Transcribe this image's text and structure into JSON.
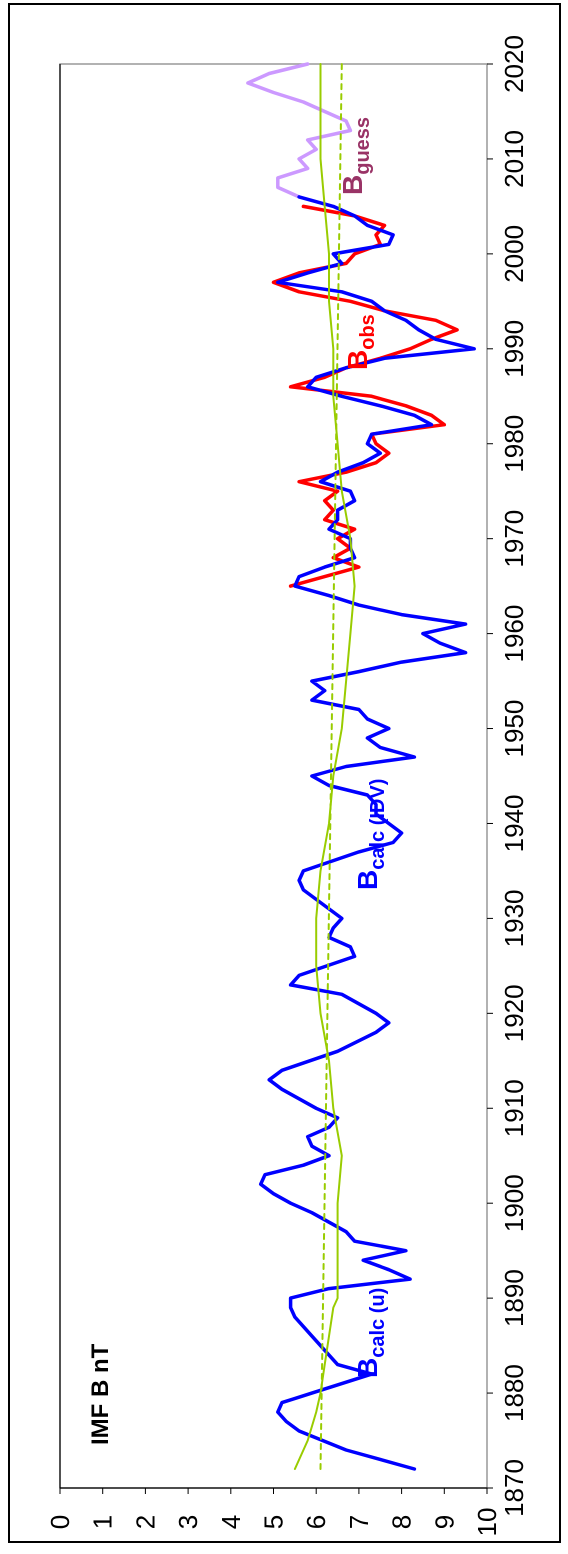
{
  "chart_data": {
    "type": "line",
    "orientation": "rotated-90-ccw",
    "title": "IMF B nT",
    "xlim": [
      1870,
      2020
    ],
    "ylim": [
      0,
      10
    ],
    "x_ticks": [
      "1870",
      "1880",
      "1890",
      "1900",
      "1910",
      "1920",
      "1930",
      "1940",
      "1950",
      "1960",
      "1970",
      "1980",
      "1990",
      "2000",
      "2010",
      "2020"
    ],
    "y_ticks": [
      "0",
      "1",
      "2",
      "3",
      "4",
      "5",
      "6",
      "7",
      "8",
      "9",
      "10"
    ],
    "grid": false,
    "colors": {
      "calc": "#0000ff",
      "obs": "#ff0000",
      "guess": "#cc99ff",
      "guess_label": "#993366",
      "smooth": "#99cc00"
    },
    "labels": {
      "calc_u": {
        "main": "B",
        "sub": "calc (u)"
      },
      "calc_idv": {
        "main": "B",
        "sub": "calc (IDV)"
      },
      "obs": {
        "main": "B",
        "sub": "obs"
      },
      "guess": {
        "main": "B",
        "sub": "guess"
      }
    },
    "series": [
      {
        "id": "calc",
        "points": [
          [
            1872,
            8.3
          ],
          [
            1874,
            6.7
          ],
          [
            1876,
            5.6
          ],
          [
            1877,
            5.3
          ],
          [
            1878,
            5.1
          ],
          [
            1879,
            5.2
          ],
          [
            1880,
            5.9
          ],
          [
            1882,
            7.3
          ],
          [
            1883,
            6.5
          ],
          [
            1884,
            6.3
          ],
          [
            1886,
            5.9
          ],
          [
            1888,
            5.5
          ],
          [
            1889,
            5.4
          ],
          [
            1890,
            5.4
          ],
          [
            1891,
            6.3
          ],
          [
            1892,
            8.2
          ],
          [
            1893,
            7.7
          ],
          [
            1894,
            7.1
          ],
          [
            1895,
            8.1
          ],
          [
            1896,
            6.9
          ],
          [
            1897,
            6.7
          ],
          [
            1898,
            6.3
          ],
          [
            1899,
            5.9
          ],
          [
            1900,
            5.4
          ],
          [
            1901,
            5.0
          ],
          [
            1902,
            4.7
          ],
          [
            1903,
            4.8
          ],
          [
            1904,
            5.7
          ],
          [
            1905,
            6.3
          ],
          [
            1906,
            5.9
          ],
          [
            1907,
            5.8
          ],
          [
            1908,
            6.3
          ],
          [
            1909,
            6.5
          ],
          [
            1910,
            6.0
          ],
          [
            1912,
            5.2
          ],
          [
            1913,
            4.9
          ],
          [
            1914,
            5.2
          ],
          [
            1916,
            6.5
          ],
          [
            1918,
            7.4
          ],
          [
            1919,
            7.7
          ],
          [
            1920,
            7.4
          ],
          [
            1922,
            6.6
          ],
          [
            1923,
            5.4
          ],
          [
            1924,
            5.6
          ],
          [
            1926,
            6.9
          ],
          [
            1927,
            6.8
          ],
          [
            1928,
            6.3
          ],
          [
            1929,
            6.4
          ],
          [
            1930,
            6.6
          ],
          [
            1932,
            6.0
          ],
          [
            1933,
            5.7
          ],
          [
            1934,
            5.6
          ],
          [
            1935,
            5.7
          ],
          [
            1937,
            7.0
          ],
          [
            1938,
            7.8
          ],
          [
            1939,
            8.0
          ],
          [
            1940,
            7.7
          ],
          [
            1941,
            7.4
          ],
          [
            1942,
            7.4
          ],
          [
            1943,
            7.2
          ],
          [
            1944,
            6.3
          ],
          [
            1945,
            5.9
          ],
          [
            1946,
            6.7
          ],
          [
            1947,
            8.3
          ],
          [
            1948,
            7.5
          ],
          [
            1949,
            7.2
          ],
          [
            1950,
            7.7
          ],
          [
            1951,
            7.2
          ],
          [
            1952,
            7.0
          ],
          [
            1953,
            5.9
          ],
          [
            1954,
            6.2
          ],
          [
            1955,
            5.9
          ],
          [
            1956,
            7.0
          ],
          [
            1957,
            8.0
          ],
          [
            1958,
            9.5
          ],
          [
            1959,
            8.9
          ],
          [
            1960,
            8.5
          ],
          [
            1961,
            9.5
          ],
          [
            1962,
            8.0
          ],
          [
            1963,
            7.0
          ],
          [
            1964,
            6.3
          ],
          [
            1965,
            5.5
          ],
          [
            1966,
            5.6
          ],
          [
            1967,
            6.2
          ],
          [
            1968,
            6.9
          ],
          [
            1969,
            6.8
          ],
          [
            1970,
            6.8
          ],
          [
            1971,
            6.3
          ],
          [
            1972,
            6.5
          ],
          [
            1973,
            6.5
          ],
          [
            1974,
            6.9
          ],
          [
            1975,
            6.8
          ],
          [
            1976,
            6.1
          ],
          [
            1977,
            6.5
          ],
          [
            1978,
            7.1
          ],
          [
            1979,
            7.5
          ],
          [
            1980,
            7.2
          ],
          [
            1981,
            7.3
          ],
          [
            1982,
            8.7
          ],
          [
            1983,
            8.3
          ],
          [
            1984,
            7.5
          ],
          [
            1985,
            6.6
          ],
          [
            1986,
            5.8
          ],
          [
            1987,
            6.0
          ],
          [
            1988,
            6.7
          ],
          [
            1989,
            7.6
          ],
          [
            1990,
            9.7
          ],
          [
            1991,
            8.8
          ],
          [
            1992,
            8.4
          ],
          [
            1993,
            8.1
          ],
          [
            1994,
            7.6
          ],
          [
            1995,
            7.3
          ],
          [
            1996,
            6.6
          ],
          [
            1997,
            5.1
          ],
          [
            1998,
            5.8
          ],
          [
            1999,
            6.6
          ],
          [
            2000,
            6.4
          ],
          [
            2001,
            7.7
          ],
          [
            2002,
            7.8
          ],
          [
            2003,
            7.2
          ],
          [
            2004,
            6.9
          ],
          [
            2005,
            6.4
          ],
          [
            2006,
            5.6
          ]
        ]
      },
      {
        "id": "obs",
        "points": [
          [
            1965,
            5.4
          ],
          [
            1966,
            6.2
          ],
          [
            1967,
            7.0
          ],
          [
            1968,
            6.4
          ],
          [
            1969,
            6.8
          ],
          [
            1970,
            6.5
          ],
          [
            1971,
            6.9
          ],
          [
            1972,
            6.2
          ],
          [
            1973,
            6.4
          ],
          [
            1974,
            6.2
          ],
          [
            1975,
            6.5
          ],
          [
            1976,
            5.6
          ],
          [
            1977,
            6.7
          ],
          [
            1978,
            7.4
          ],
          [
            1979,
            7.7
          ],
          [
            1980,
            7.4
          ],
          [
            1981,
            7.3
          ],
          [
            1982,
            9.0
          ],
          [
            1983,
            8.7
          ],
          [
            1984,
            8.1
          ],
          [
            1985,
            7.3
          ],
          [
            1986,
            5.4
          ],
          [
            1987,
            6.2
          ],
          [
            1988,
            6.7
          ],
          [
            1989,
            7.5
          ],
          [
            1990,
            8.2
          ],
          [
            1991,
            8.7
          ],
          [
            1992,
            9.3
          ],
          [
            1993,
            8.8
          ],
          [
            1994,
            7.6
          ],
          [
            1995,
            6.8
          ],
          [
            1996,
            5.6
          ],
          [
            1997,
            5.0
          ],
          [
            1998,
            5.6
          ],
          [
            1999,
            6.7
          ],
          [
            2000,
            6.9
          ],
          [
            2001,
            7.5
          ],
          [
            2002,
            7.4
          ],
          [
            2003,
            7.6
          ],
          [
            2004,
            6.9
          ],
          [
            2005,
            5.7
          ]
        ]
      },
      {
        "id": "guess",
        "points": [
          [
            2006,
            5.6
          ],
          [
            2007,
            5.1
          ],
          [
            2008,
            5.1
          ],
          [
            2009,
            5.8
          ],
          [
            2010,
            5.6
          ],
          [
            2011,
            6.0
          ],
          [
            2012,
            5.8
          ],
          [
            2013,
            6.8
          ],
          [
            2014,
            6.7
          ],
          [
            2015,
            6.2
          ],
          [
            2016,
            5.7
          ],
          [
            2017,
            5.0
          ],
          [
            2018,
            4.4
          ],
          [
            2019,
            4.9
          ],
          [
            2020,
            5.8
          ]
        ]
      },
      {
        "id": "smooth",
        "points": [
          [
            1872,
            5.5
          ],
          [
            1875,
            5.8
          ],
          [
            1878,
            6.0
          ],
          [
            1880,
            6.1
          ],
          [
            1883,
            6.2
          ],
          [
            1886,
            6.3
          ],
          [
            1889,
            6.4
          ],
          [
            1890,
            6.5
          ],
          [
            1895,
            6.5
          ],
          [
            1900,
            6.5
          ],
          [
            1905,
            6.6
          ],
          [
            1910,
            6.4
          ],
          [
            1915,
            6.3
          ],
          [
            1920,
            6.1
          ],
          [
            1925,
            6.0
          ],
          [
            1930,
            6.0
          ],
          [
            1935,
            6.1
          ],
          [
            1940,
            6.3
          ],
          [
            1945,
            6.4
          ],
          [
            1950,
            6.6
          ],
          [
            1955,
            6.7
          ],
          [
            1960,
            6.8
          ],
          [
            1965,
            6.9
          ],
          [
            1970,
            6.8
          ],
          [
            1975,
            6.6
          ],
          [
            1980,
            6.5
          ],
          [
            1985,
            6.4
          ],
          [
            1990,
            6.4
          ],
          [
            1995,
            6.3
          ],
          [
            2000,
            6.3
          ],
          [
            2005,
            6.2
          ],
          [
            2010,
            6.1
          ],
          [
            2015,
            6.1
          ],
          [
            2020,
            6.1
          ]
        ]
      },
      {
        "id": "mean",
        "style": "dashed",
        "points": [
          [
            1872,
            6.1
          ],
          [
            2020,
            6.6
          ]
        ]
      }
    ]
  }
}
